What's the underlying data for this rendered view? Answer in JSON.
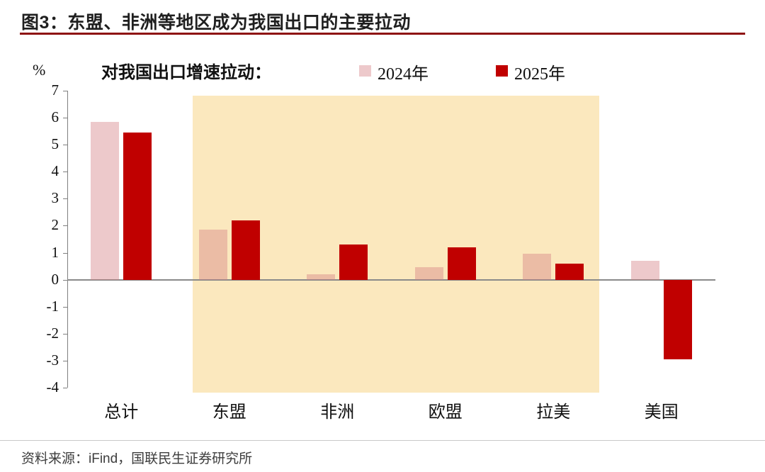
{
  "header": {
    "title": "图3：东盟、非洲等地区成为我国出口的主要拉动"
  },
  "chart_data": {
    "type": "bar",
    "legend_title": "对我国出口增速拉动：",
    "unit_label": "%",
    "categories": [
      "总计",
      "东盟",
      "非洲",
      "欧盟",
      "拉美",
      "美国"
    ],
    "series": [
      {
        "name": "2024年",
        "fill": "#D47E82",
        "opacity": 0.42,
        "values": [
          5.85,
          1.85,
          0.2,
          0.45,
          0.95,
          0.7
        ]
      },
      {
        "name": "2025年",
        "fill": "#C00000",
        "opacity": 1,
        "values": [
          5.45,
          2.2,
          1.3,
          1.2,
          0.6,
          -2.95
        ]
      }
    ],
    "ylim": [
      -4,
      7
    ],
    "yticks": [
      7,
      6,
      5,
      4,
      3,
      2,
      1,
      0,
      -1,
      -2,
      -3,
      -4
    ],
    "highlight": {
      "from_category": "东盟",
      "to_category": "拉美",
      "color": "#FBE8BE"
    },
    "axis_color": "#7F7F7F",
    "zero_line_color": "#8A8A8A",
    "legend_position": "top",
    "grid": false
  },
  "footer": {
    "source": "资料来源：iFind，国联民生证券研究所"
  }
}
